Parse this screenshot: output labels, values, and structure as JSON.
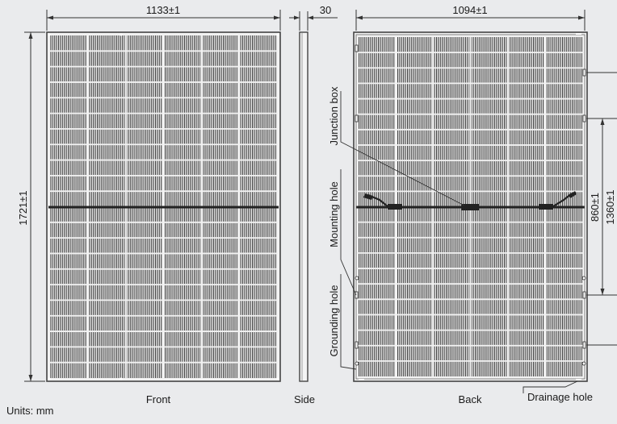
{
  "dimensions": {
    "front_width": "1133±1",
    "height": "1721±1",
    "side_depth": "30",
    "back_width": "1094±1",
    "mount_spacing_inner": "860±1",
    "mount_spacing_outer": "1360±1"
  },
  "views": {
    "front": "Front",
    "side": "Side",
    "back": "Back"
  },
  "callouts": {
    "junction_box": "Junction box",
    "mounting_hole": "Mounting hole",
    "grounding_hole": "Grounding hole",
    "drainage_hole": "Drainage hole"
  },
  "units": "Units: mm",
  "colors": {
    "background": "#eaebed",
    "frame": "#4a4a4a",
    "cell_line": "#333333",
    "panel_fill": "#f4f4f4"
  },
  "panel_grid": {
    "columns": 6,
    "rows": 22
  }
}
